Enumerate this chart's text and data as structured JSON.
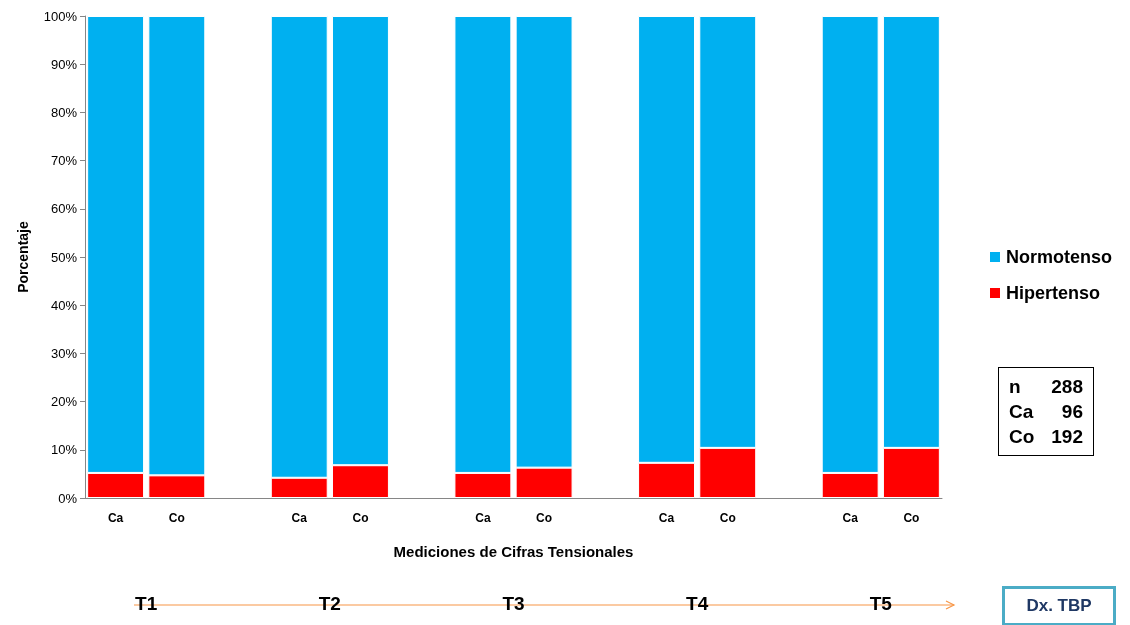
{
  "chart_data": {
    "type": "bar",
    "stacked": true,
    "xlabel": "Mediciones de Cifras Tensionales",
    "ylabel": "Porcentaje",
    "categories": [
      "Ca",
      "Co",
      null,
      "Ca",
      "Co",
      null,
      "Ca",
      "Co",
      null,
      "Ca",
      "Co",
      null,
      "Ca",
      "Co"
    ],
    "series": [
      {
        "name": "Hipertenso",
        "color": "#ff0000",
        "values": [
          5.2,
          4.7,
          null,
          4.2,
          6.8,
          null,
          5.2,
          6.3,
          null,
          7.3,
          10.4,
          null,
          5.2,
          10.4
        ]
      },
      {
        "name": "Normotenso",
        "color": "#00b0f0",
        "values": [
          94.8,
          95.3,
          null,
          95.8,
          93.2,
          null,
          94.8,
          93.7,
          null,
          92.7,
          89.6,
          null,
          94.8,
          89.6
        ]
      }
    ],
    "ylim": [
      0,
      100
    ],
    "yticks": [
      {
        "value": 0,
        "label": "0%"
      },
      {
        "value": 10,
        "label": "10%"
      },
      {
        "value": 20,
        "label": "20%"
      },
      {
        "value": 30,
        "label": "30%"
      },
      {
        "value": 40,
        "label": "40%"
      },
      {
        "value": 50,
        "label": "50%"
      },
      {
        "value": 60,
        "label": "60%"
      },
      {
        "value": 70,
        "label": "70%"
      },
      {
        "value": 80,
        "label": "80%"
      },
      {
        "value": 90,
        "label": "90%"
      },
      {
        "value": 100,
        "label": "100%"
      }
    ],
    "grid": false,
    "legend": "right",
    "annotations": [
      "T1",
      "T2",
      "T3",
      "T4",
      "T5",
      "Dx. TBP",
      "n",
      "288",
      "Ca",
      "96",
      "Co",
      "192"
    ]
  }
}
